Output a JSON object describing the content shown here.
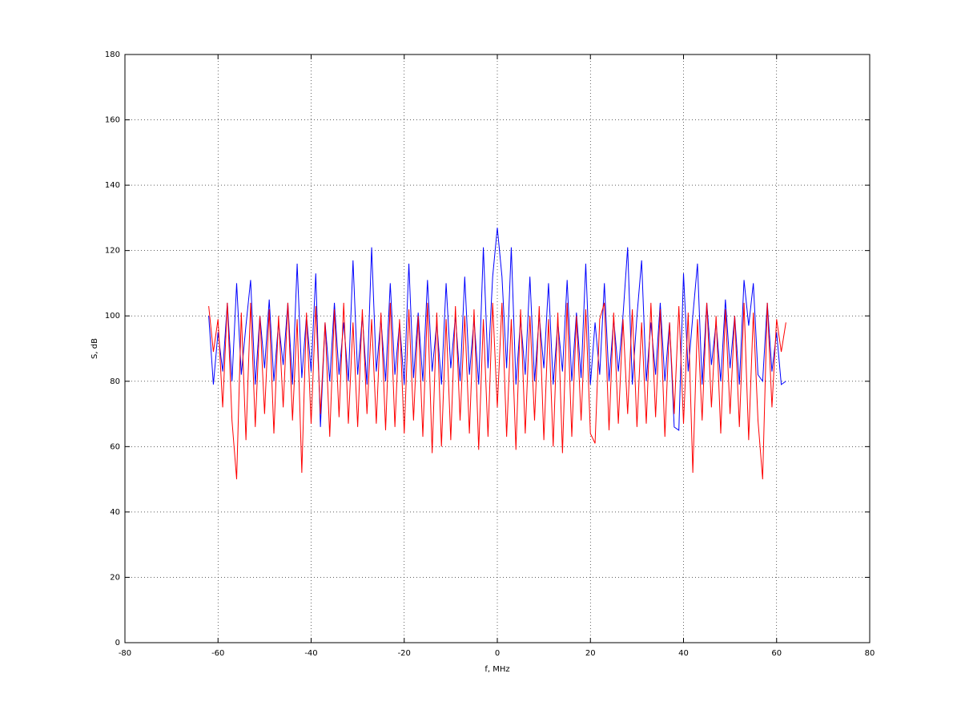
{
  "chart_data": {
    "type": "line",
    "x_label": "f, MHz",
    "y_label": "S, dB",
    "xlim": [
      -80,
      80
    ],
    "xticks": [
      -80,
      -60,
      -40,
      -20,
      0,
      20,
      40,
      60,
      80
    ],
    "ylim": [
      0,
      180
    ],
    "yticks": [
      0,
      20,
      40,
      60,
      80,
      100,
      120,
      140,
      160,
      180
    ],
    "grid": true,
    "x": [
      -62,
      -61,
      -60,
      -59,
      -58,
      -57,
      -56,
      -55,
      -54,
      -53,
      -52,
      -51,
      -50,
      -49,
      -48,
      -47,
      -46,
      -45,
      -44,
      -43,
      -42,
      -41,
      -40,
      -39,
      -38,
      -37,
      -36,
      -35,
      -34,
      -33,
      -32,
      -31,
      -30,
      -29,
      -28,
      -27,
      -26,
      -25,
      -24,
      -23,
      -22,
      -21,
      -20,
      -19,
      -18,
      -17,
      -16,
      -15,
      -14,
      -13,
      -12,
      -11,
      -10,
      -9,
      -8,
      -7,
      -6,
      -5,
      -4,
      -3,
      -2,
      -1,
      0,
      1,
      2,
      3,
      4,
      5,
      6,
      7,
      8,
      9,
      10,
      11,
      12,
      13,
      14,
      15,
      16,
      17,
      18,
      19,
      20,
      21,
      22,
      23,
      24,
      25,
      26,
      27,
      28,
      29,
      30,
      31,
      32,
      33,
      34,
      35,
      36,
      37,
      38,
      39,
      40,
      41,
      42,
      43,
      44,
      45,
      46,
      47,
      48,
      49,
      50,
      51,
      52,
      53,
      54,
      55,
      56,
      57,
      58,
      59,
      60,
      61,
      62
    ],
    "series": [
      {
        "color": "#0000ff",
        "values": [
          100,
          79,
          95,
          83,
          104,
          80,
          110,
          82,
          97,
          111,
          79,
          100,
          84,
          105,
          80,
          98,
          85,
          104,
          79,
          116,
          81,
          100,
          83,
          113,
          66,
          98,
          80,
          104,
          82,
          98,
          80,
          117,
          82,
          100,
          79,
          121,
          83,
          99,
          80,
          110,
          82,
          98,
          79,
          116,
          81,
          101,
          80,
          111,
          83,
          98,
          79,
          110,
          84,
          100,
          80,
          112,
          82,
          99,
          79,
          121,
          84,
          112,
          127,
          112,
          84,
          121,
          79,
          99,
          82,
          112,
          80,
          100,
          84,
          110,
          79,
          98,
          83,
          111,
          80,
          101,
          81,
          116,
          79,
          98,
          82,
          110,
          80,
          99,
          83,
          100,
          121,
          79,
          100,
          117,
          80,
          98,
          82,
          104,
          80,
          98,
          66,
          65,
          113,
          83,
          100,
          116,
          79,
          104,
          85,
          98,
          80,
          105,
          84,
          100,
          79,
          111,
          97,
          110,
          82,
          80,
          104,
          83,
          95,
          79,
          80
        ]
      },
      {
        "color": "#ff0000",
        "values": [
          103,
          89,
          99,
          72,
          104,
          68,
          50,
          101,
          62,
          104,
          66,
          100,
          70,
          102,
          64,
          100,
          72,
          104,
          68,
          99,
          52,
          101,
          67,
          103,
          70,
          98,
          63,
          102,
          69,
          104,
          67,
          98,
          66,
          102,
          70,
          99,
          67,
          101,
          65,
          104,
          66,
          99,
          64,
          102,
          68,
          100,
          63,
          104,
          58,
          101,
          60,
          99,
          62,
          103,
          68,
          100,
          64,
          102,
          59,
          99,
          63,
          104,
          72,
          104,
          63,
          99,
          59,
          102,
          64,
          100,
          68,
          103,
          62,
          99,
          60,
          101,
          58,
          104,
          63,
          100,
          68,
          102,
          64,
          61,
          99,
          104,
          65,
          101,
          67,
          99,
          70,
          102,
          66,
          98,
          67,
          104,
          69,
          102,
          63,
          98,
          70,
          103,
          67,
          101,
          52,
          99,
          68,
          104,
          72,
          100,
          64,
          102,
          70,
          100,
          66,
          104,
          62,
          101,
          68,
          50,
          104,
          72,
          99,
          89,
          98
        ]
      }
    ]
  }
}
